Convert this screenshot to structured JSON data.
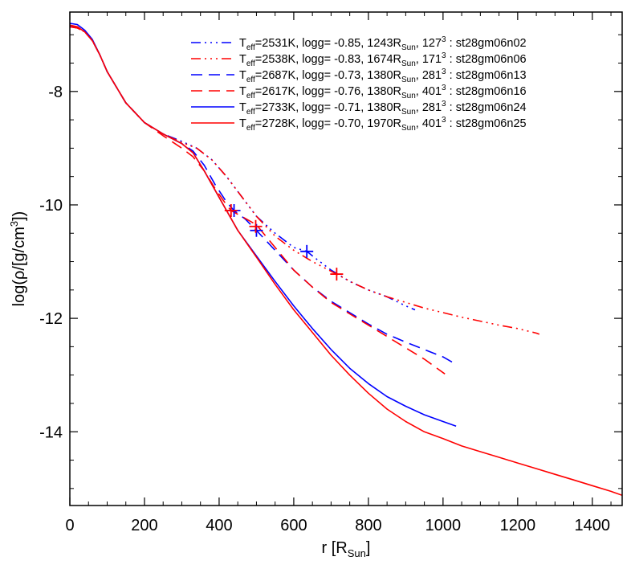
{
  "chart_data": {
    "type": "line",
    "title": "",
    "xlabel": {
      "main": "r [R",
      "sub": "Sun",
      "end": "]"
    },
    "ylabel": {
      "pre": "log(ρ/[g/cm",
      "sup": "3",
      "post": "])"
    },
    "xlim": [
      0,
      1480
    ],
    "ylim": [
      -15.3,
      -6.6
    ],
    "xticks": [
      0,
      200,
      400,
      600,
      800,
      1000,
      1200,
      1400
    ],
    "xtick_labels": [
      "0",
      "200",
      "400",
      "600",
      "800",
      "1000",
      "1200",
      "1400"
    ],
    "yticks": [
      -14,
      -12,
      -10,
      -8
    ],
    "ytick_labels": [
      "-14",
      "-12",
      "-10",
      "-8"
    ],
    "grid": false,
    "legend_position": "top-right",
    "series": [
      {
        "name": "st28gm06n02",
        "legend": {
          "t": "T",
          "tsub": "eff",
          "a": "=2531K, logg= -0.85, 1243R",
          "rsub": "Sun",
          "b": ", 127",
          "sup": "3",
          "c": " : st28gm06n02"
        },
        "color": "#0000ff",
        "dash": "dashdotdotdot",
        "x": [
          0,
          20,
          40,
          60,
          80,
          100,
          150,
          200,
          250,
          300,
          340,
          380,
          420,
          460,
          500,
          550,
          600,
          635,
          660,
          700,
          750,
          800,
          850,
          900,
          925
        ],
        "y": [
          -6.86,
          -6.86,
          -6.95,
          -7.1,
          -7.35,
          -7.65,
          -8.2,
          -8.55,
          -8.75,
          -8.88,
          -9.0,
          -9.2,
          -9.5,
          -9.85,
          -10.2,
          -10.5,
          -10.75,
          -10.82,
          -10.95,
          -11.15,
          -11.35,
          -11.5,
          -11.62,
          -11.78,
          -11.85
        ],
        "markers": [
          {
            "x": 635,
            "y": -10.82
          }
        ]
      },
      {
        "name": "st28gm06n06",
        "legend": {
          "t": "T",
          "tsub": "eff",
          "a": "=2538K, logg= -0.83, 1674R",
          "rsub": "Sun",
          "b": ", 171",
          "sup": "3",
          "c": " : st28gm06n06"
        },
        "color": "#ff0000",
        "dash": "dashdotdotdot",
        "x": [
          0,
          20,
          40,
          60,
          80,
          100,
          150,
          200,
          250,
          300,
          340,
          380,
          420,
          460,
          500,
          550,
          600,
          650,
          715,
          760,
          800,
          850,
          900,
          950,
          1000,
          1050,
          1100,
          1150,
          1200,
          1250,
          1258
        ],
        "y": [
          -6.86,
          -6.88,
          -6.95,
          -7.1,
          -7.35,
          -7.65,
          -8.2,
          -8.55,
          -8.75,
          -8.9,
          -9.0,
          -9.2,
          -9.5,
          -9.85,
          -10.2,
          -10.55,
          -10.8,
          -11.0,
          -11.22,
          -11.38,
          -11.5,
          -11.62,
          -11.72,
          -11.82,
          -11.9,
          -11.98,
          -12.05,
          -12.12,
          -12.18,
          -12.26,
          -12.28
        ],
        "markers": [
          {
            "x": 715,
            "y": -11.22
          }
        ]
      },
      {
        "name": "st28gm06n13",
        "legend": {
          "t": "T",
          "tsub": "eff",
          "a": "=2687K, logg= -0.73, 1380R",
          "rsub": "Sun",
          "b": ", 281",
          "sup": "3",
          "c": " : st28gm06n13"
        },
        "color": "#0000ff",
        "dash": "dashed",
        "x": [
          0,
          20,
          40,
          60,
          80,
          100,
          150,
          200,
          250,
          300,
          330,
          360,
          390,
          420,
          440,
          470,
          500,
          550,
          600,
          650,
          700,
          750,
          800,
          850,
          900,
          950,
          1000,
          1032
        ],
        "y": [
          -6.86,
          -6.86,
          -6.95,
          -7.1,
          -7.35,
          -7.65,
          -8.2,
          -8.55,
          -8.75,
          -8.92,
          -9.05,
          -9.3,
          -9.65,
          -9.95,
          -10.1,
          -10.25,
          -10.45,
          -10.8,
          -11.15,
          -11.45,
          -11.7,
          -11.9,
          -12.1,
          -12.28,
          -12.42,
          -12.55,
          -12.68,
          -12.8
        ],
        "markers": [
          {
            "x": 440,
            "y": -10.1
          },
          {
            "x": 500,
            "y": -10.45
          }
        ]
      },
      {
        "name": "st28gm06n16",
        "legend": {
          "t": "T",
          "tsub": "eff",
          "a": "=2617K, logg= -0.76, 1380R",
          "rsub": "Sun",
          "b": ", 401",
          "sup": "3",
          "c": " : st28gm06n16"
        },
        "color": "#ff0000",
        "dash": "dashed",
        "x": [
          0,
          20,
          40,
          60,
          80,
          100,
          150,
          200,
          250,
          300,
          330,
          360,
          390,
          420,
          432,
          460,
          500,
          550,
          600,
          650,
          700,
          750,
          800,
          850,
          900,
          950,
          1005
        ],
        "y": [
          -6.86,
          -6.88,
          -6.95,
          -7.1,
          -7.35,
          -7.65,
          -8.2,
          -8.55,
          -8.78,
          -9.0,
          -9.15,
          -9.4,
          -9.72,
          -10.0,
          -10.1,
          -10.2,
          -10.35,
          -10.75,
          -11.15,
          -11.45,
          -11.72,
          -11.92,
          -12.12,
          -12.32,
          -12.52,
          -12.72,
          -12.98
        ],
        "markers": [
          {
            "x": 432,
            "y": -10.1
          },
          {
            "x": 498,
            "y": -10.38
          }
        ]
      },
      {
        "name": "st28gm06n24",
        "legend": {
          "t": "T",
          "tsub": "eff",
          "a": "=2733K, logg= -0.71, 1380R",
          "rsub": "Sun",
          "b": ", 281",
          "sup": "3",
          "c": " : st28gm06n24"
        },
        "color": "#0000ff",
        "dash": "solid",
        "x": [
          0,
          20,
          40,
          60,
          80,
          100,
          150,
          200,
          250,
          300,
          330,
          360,
          390,
          420,
          450,
          500,
          550,
          600,
          650,
          700,
          750,
          800,
          850,
          900,
          950,
          1000,
          1035
        ],
        "y": [
          -6.8,
          -6.82,
          -6.92,
          -7.08,
          -7.35,
          -7.65,
          -8.2,
          -8.55,
          -8.75,
          -8.92,
          -9.08,
          -9.4,
          -9.75,
          -10.1,
          -10.45,
          -10.9,
          -11.35,
          -11.78,
          -12.18,
          -12.55,
          -12.88,
          -13.15,
          -13.38,
          -13.55,
          -13.7,
          -13.82,
          -13.9
        ],
        "markers": []
      },
      {
        "name": "st28gm06n25",
        "legend": {
          "t": "T",
          "tsub": "eff",
          "a": "=2728K, logg= -0.70, 1970R",
          "rsub": "Sun",
          "b": ", 401",
          "sup": "3",
          "c": " : st28gm06n25"
        },
        "color": "#ff0000",
        "dash": "solid",
        "x": [
          0,
          20,
          40,
          60,
          80,
          100,
          150,
          200,
          250,
          300,
          330,
          360,
          390,
          420,
          450,
          500,
          550,
          600,
          650,
          700,
          750,
          800,
          850,
          900,
          950,
          1000,
          1050,
          1100,
          1150,
          1200,
          1250,
          1300,
          1350,
          1400,
          1450,
          1480
        ],
        "y": [
          -6.83,
          -6.86,
          -6.95,
          -7.1,
          -7.35,
          -7.65,
          -8.2,
          -8.55,
          -8.75,
          -8.92,
          -9.08,
          -9.4,
          -9.75,
          -10.1,
          -10.45,
          -10.92,
          -11.4,
          -11.85,
          -12.25,
          -12.65,
          -13.0,
          -13.32,
          -13.6,
          -13.82,
          -14.0,
          -14.12,
          -14.25,
          -14.35,
          -14.45,
          -14.55,
          -14.65,
          -14.75,
          -14.85,
          -14.95,
          -15.05,
          -15.12
        ],
        "markers": []
      }
    ]
  }
}
